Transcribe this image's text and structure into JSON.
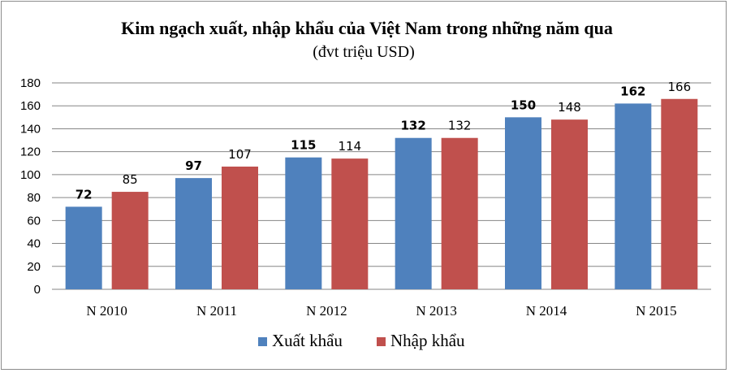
{
  "chart_data": {
    "type": "bar",
    "title": "Kim ngạch xuất, nhập khẩu của Việt Nam trong những năm qua",
    "subtitle": "(đvt triệu USD)",
    "categories": [
      "N 2010",
      "N 2011",
      "N 2012",
      "N 2013",
      "N 2014",
      "N 2015"
    ],
    "series": [
      {
        "name": "Xuất khẩu",
        "color": "#4f81bd",
        "values": [
          72,
          97,
          115,
          132,
          150,
          162
        ],
        "label_bold": true
      },
      {
        "name": "Nhập khẩu",
        "color": "#c0504d",
        "values": [
          85,
          107,
          114,
          132,
          148,
          166
        ],
        "label_bold": false
      }
    ],
    "ylim": [
      0,
      180
    ],
    "yticks": [
      0,
      20,
      40,
      60,
      80,
      100,
      120,
      140,
      160,
      180
    ],
    "grid": true,
    "legend_position": "bottom"
  }
}
